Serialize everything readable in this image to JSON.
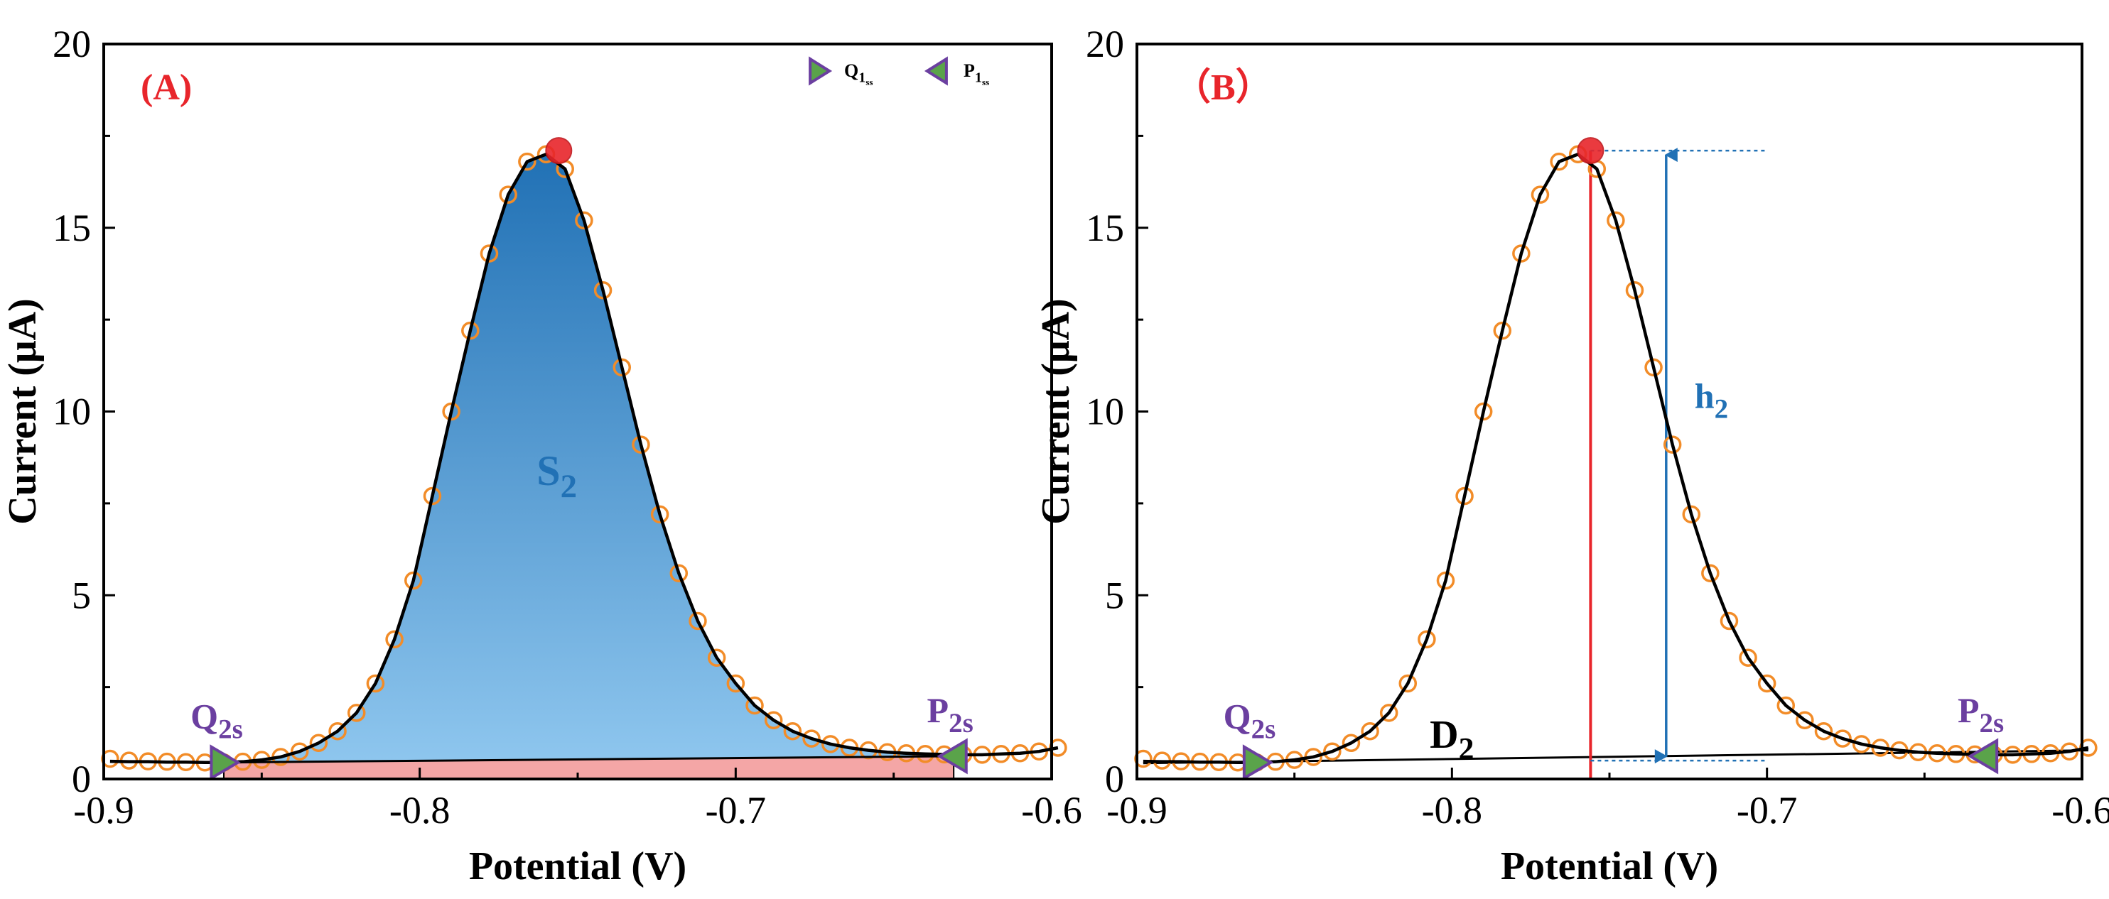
{
  "chart_data": [
    {
      "type": "line",
      "panel_label": "(A)",
      "xlabel": "Potential (V)",
      "ylabel": "Current (μA)",
      "xlim": [
        -0.9,
        -0.6
      ],
      "ylim": [
        0,
        20
      ],
      "x_ticks": [
        -0.9,
        -0.8,
        -0.7,
        -0.6
      ],
      "x_tick_labels": [
        "-0.9",
        "-0.8",
        "-0.7",
        "-0.6"
      ],
      "y_ticks": [
        0,
        5,
        10,
        15,
        20
      ],
      "y_tick_labels": [
        "0",
        "5",
        "10",
        "15",
        "20"
      ],
      "grid": false,
      "peak": {
        "x": -0.756,
        "y": 17.1
      },
      "baseline_current": 0.45,
      "start_point": {
        "x": -0.862,
        "y": 0.45,
        "label_main": "Q",
        "label_sub": "2s"
      },
      "end_point": {
        "x": -0.631,
        "y": 0.62,
        "label_main": "P",
        "label_sub": "2s"
      },
      "area_label": {
        "main": "S",
        "sub": "2",
        "x": -0.763,
        "y": 8.0
      },
      "legend": {
        "position": "top-right",
        "entries": [
          {
            "marker": "right-triangle",
            "main": "Q",
            "sub": "1",
            "subsub": "ss"
          },
          {
            "marker": "left-triangle",
            "main": "P",
            "sub": "1",
            "subsub": "ss"
          }
        ]
      },
      "series": [
        {
          "name": "measured",
          "style": "open-circle",
          "x": [
            -0.898,
            -0.892,
            -0.886,
            -0.88,
            -0.874,
            -0.868,
            -0.862,
            -0.856,
            -0.85,
            -0.844,
            -0.838,
            -0.832,
            -0.826,
            -0.82,
            -0.814,
            -0.808,
            -0.802,
            -0.796,
            -0.79,
            -0.784,
            -0.778,
            -0.772,
            -0.766,
            -0.76,
            -0.754,
            -0.748,
            -0.742,
            -0.736,
            -0.73,
            -0.724,
            -0.718,
            -0.712,
            -0.706,
            -0.7,
            -0.694,
            -0.688,
            -0.682,
            -0.676,
            -0.67,
            -0.664,
            -0.658,
            -0.652,
            -0.646,
            -0.64,
            -0.634,
            -0.628,
            -0.622,
            -0.616,
            -0.61,
            -0.604,
            -0.598
          ],
          "values": [
            0.55,
            0.5,
            0.48,
            0.47,
            0.46,
            0.45,
            0.45,
            0.47,
            0.52,
            0.6,
            0.75,
            0.98,
            1.3,
            1.8,
            2.6,
            3.8,
            5.4,
            7.7,
            10.0,
            12.2,
            14.3,
            15.9,
            16.8,
            17.0,
            16.6,
            15.2,
            13.3,
            11.2,
            9.1,
            7.2,
            5.6,
            4.3,
            3.3,
            2.6,
            2.0,
            1.6,
            1.3,
            1.1,
            0.95,
            0.85,
            0.78,
            0.73,
            0.7,
            0.68,
            0.67,
            0.66,
            0.66,
            0.68,
            0.7,
            0.75,
            0.85
          ]
        },
        {
          "name": "fit",
          "style": "line",
          "x": [
            -0.898,
            -0.892,
            -0.886,
            -0.88,
            -0.874,
            -0.868,
            -0.862,
            -0.856,
            -0.85,
            -0.844,
            -0.838,
            -0.832,
            -0.826,
            -0.82,
            -0.814,
            -0.808,
            -0.802,
            -0.796,
            -0.79,
            -0.784,
            -0.778,
            -0.772,
            -0.766,
            -0.76,
            -0.754,
            -0.748,
            -0.742,
            -0.736,
            -0.73,
            -0.724,
            -0.718,
            -0.712,
            -0.706,
            -0.7,
            -0.694,
            -0.688,
            -0.682,
            -0.676,
            -0.67,
            -0.664,
            -0.658,
            -0.652,
            -0.646,
            -0.64,
            -0.634,
            -0.628,
            -0.622,
            -0.616,
            -0.61,
            -0.604,
            -0.598
          ],
          "values": [
            0.48,
            0.47,
            0.47,
            0.46,
            0.46,
            0.45,
            0.45,
            0.47,
            0.52,
            0.6,
            0.75,
            0.98,
            1.3,
            1.8,
            2.6,
            3.8,
            5.4,
            7.7,
            10.0,
            12.2,
            14.3,
            15.9,
            16.8,
            17.0,
            16.6,
            15.2,
            13.3,
            11.2,
            9.1,
            7.2,
            5.6,
            4.3,
            3.3,
            2.6,
            2.0,
            1.6,
            1.3,
            1.1,
            0.95,
            0.85,
            0.78,
            0.73,
            0.7,
            0.68,
            0.67,
            0.66,
            0.66,
            0.68,
            0.7,
            0.75,
            0.85
          ]
        }
      ]
    },
    {
      "type": "line",
      "panel_label": "（B）",
      "xlabel": "Potential (V)",
      "ylabel": "Current (μA)",
      "xlim": [
        -0.9,
        -0.6
      ],
      "ylim": [
        0,
        20
      ],
      "x_ticks": [
        -0.9,
        -0.8,
        -0.7,
        -0.6
      ],
      "x_tick_labels": [
        "-0.9",
        "-0.8",
        "-0.7",
        "-0.6"
      ],
      "y_ticks": [
        0,
        5,
        10,
        15,
        20
      ],
      "y_tick_labels": [
        "0",
        "5",
        "10",
        "15",
        "20"
      ],
      "grid": false,
      "peak": {
        "x": -0.756,
        "y": 17.1
      },
      "baseline_current": 0.45,
      "start_point": {
        "x": -0.862,
        "y": 0.45,
        "label_main": "Q",
        "label_sub": "2s"
      },
      "end_point": {
        "x": -0.631,
        "y": 0.62,
        "label_main": "P",
        "label_sub": "2s"
      },
      "height_label": {
        "main": "h",
        "sub": "2"
      },
      "baseline_label": {
        "main": "D",
        "sub": "2",
        "x": -0.8,
        "y": 0.85
      },
      "height_marker_x": -0.732,
      "dotted_ref_x_end": -0.7,
      "series": [
        {
          "name": "measured",
          "style": "open-circle",
          "x": [
            -0.898,
            -0.892,
            -0.886,
            -0.88,
            -0.874,
            -0.868,
            -0.862,
            -0.856,
            -0.85,
            -0.844,
            -0.838,
            -0.832,
            -0.826,
            -0.82,
            -0.814,
            -0.808,
            -0.802,
            -0.796,
            -0.79,
            -0.784,
            -0.778,
            -0.772,
            -0.766,
            -0.76,
            -0.754,
            -0.748,
            -0.742,
            -0.736,
            -0.73,
            -0.724,
            -0.718,
            -0.712,
            -0.706,
            -0.7,
            -0.694,
            -0.688,
            -0.682,
            -0.676,
            -0.67,
            -0.664,
            -0.658,
            -0.652,
            -0.646,
            -0.64,
            -0.634,
            -0.628,
            -0.622,
            -0.616,
            -0.61,
            -0.604,
            -0.598
          ],
          "values": [
            0.55,
            0.5,
            0.48,
            0.47,
            0.46,
            0.45,
            0.45,
            0.47,
            0.52,
            0.6,
            0.75,
            0.98,
            1.3,
            1.8,
            2.6,
            3.8,
            5.4,
            7.7,
            10.0,
            12.2,
            14.3,
            15.9,
            16.8,
            17.0,
            16.6,
            15.2,
            13.3,
            11.2,
            9.1,
            7.2,
            5.6,
            4.3,
            3.3,
            2.6,
            2.0,
            1.6,
            1.3,
            1.1,
            0.95,
            0.85,
            0.78,
            0.73,
            0.7,
            0.68,
            0.67,
            0.66,
            0.66,
            0.68,
            0.7,
            0.75,
            0.85
          ]
        },
        {
          "name": "fit",
          "style": "line",
          "x": [
            -0.898,
            -0.892,
            -0.886,
            -0.88,
            -0.874,
            -0.868,
            -0.862,
            -0.856,
            -0.85,
            -0.844,
            -0.838,
            -0.832,
            -0.826,
            -0.82,
            -0.814,
            -0.808,
            -0.802,
            -0.796,
            -0.79,
            -0.784,
            -0.778,
            -0.772,
            -0.766,
            -0.76,
            -0.754,
            -0.748,
            -0.742,
            -0.736,
            -0.73,
            -0.724,
            -0.718,
            -0.712,
            -0.706,
            -0.7,
            -0.694,
            -0.688,
            -0.682,
            -0.676,
            -0.67,
            -0.664,
            -0.658,
            -0.652,
            -0.646,
            -0.64,
            -0.634,
            -0.628,
            -0.622,
            -0.616,
            -0.61,
            -0.604,
            -0.598
          ],
          "values": [
            0.48,
            0.47,
            0.47,
            0.46,
            0.46,
            0.45,
            0.45,
            0.47,
            0.52,
            0.6,
            0.75,
            0.98,
            1.3,
            1.8,
            2.6,
            3.8,
            5.4,
            7.7,
            10.0,
            12.2,
            14.3,
            15.9,
            16.8,
            17.0,
            16.6,
            15.2,
            13.3,
            11.2,
            9.1,
            7.2,
            5.6,
            4.3,
            3.3,
            2.6,
            2.0,
            1.6,
            1.3,
            1.1,
            0.95,
            0.85,
            0.78,
            0.73,
            0.7,
            0.68,
            0.67,
            0.66,
            0.66,
            0.68,
            0.7,
            0.75,
            0.85
          ]
        }
      ]
    }
  ],
  "colors": {
    "axis": "#000000",
    "marker_edge": "#f28c28",
    "fit_line": "#000000",
    "fill_top": "#2171b5",
    "fill_bottom": "#8ec6ee",
    "baseline_fill": "#f4a6a6",
    "peak_marker": "#e8252b",
    "triangle_fill": "#5aa34a",
    "triangle_edge": "#6b3fa0",
    "label_purple": "#6b3fa0",
    "panel_label": "#e8252b",
    "annotation_blue": "#2171b5",
    "vertical_red": "#e8252b"
  }
}
